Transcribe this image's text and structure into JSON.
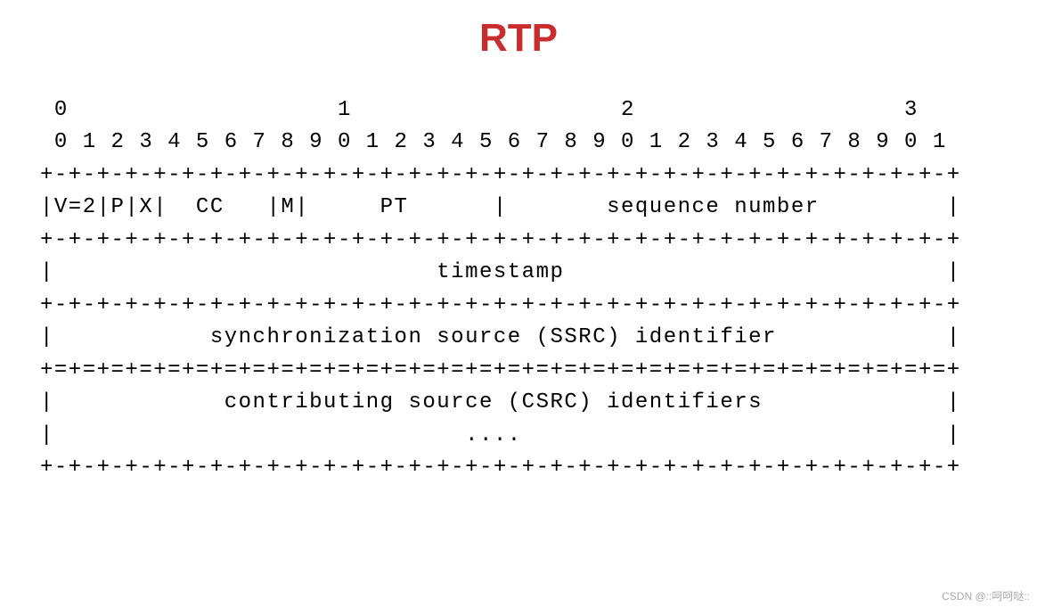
{
  "title": {
    "text": "RTP",
    "color": "#c82c2c",
    "font_size": 44,
    "font_weight": "bold"
  },
  "diagram": {
    "type": "ascii-header-layout",
    "font_family": "Courier New",
    "font_size": 24,
    "text_color": "#000000",
    "background_color": "#ffffff",
    "line_height": 1.52,
    "letter_spacing": 1.5,
    "bit_ruler_major": " 0                   1                   2                   3",
    "bit_ruler_minor": " 0 1 2 3 4 5 6 7 8 9 0 1 2 3 4 5 6 7 8 9 0 1 2 3 4 5 6 7 8 9 0 1",
    "separator_single": "+-+-+-+-+-+-+-+-+-+-+-+-+-+-+-+-+-+-+-+-+-+-+-+-+-+-+-+-+-+-+-+-+",
    "separator_double": "+=+=+=+=+=+=+=+=+=+=+=+=+=+=+=+=+=+=+=+=+=+=+=+=+=+=+=+=+=+=+=+=+",
    "row1": "|V=2|P|X|  CC   |M|     PT      |       sequence number         |",
    "row2": "|                           timestamp                           |",
    "row3": "|           synchronization source (SSRC) identifier            |",
    "row4": "|            contributing source (CSRC) identifiers             |",
    "row5": "|                             ....                              |",
    "fields": [
      {
        "name": "V",
        "bits": 2,
        "value": "2"
      },
      {
        "name": "P",
        "bits": 1
      },
      {
        "name": "X",
        "bits": 1
      },
      {
        "name": "CC",
        "bits": 4
      },
      {
        "name": "M",
        "bits": 1
      },
      {
        "name": "PT",
        "bits": 7
      },
      {
        "name": "sequence number",
        "bits": 16
      },
      {
        "name": "timestamp",
        "bits": 32
      },
      {
        "name": "synchronization source (SSRC) identifier",
        "bits": 32
      },
      {
        "name": "contributing source (CSRC) identifiers",
        "bits": 32,
        "repeating": true
      }
    ]
  },
  "watermark": {
    "text": "CSDN @::呵呵哒::",
    "color": "#aaaaaa",
    "font_size": 12
  }
}
